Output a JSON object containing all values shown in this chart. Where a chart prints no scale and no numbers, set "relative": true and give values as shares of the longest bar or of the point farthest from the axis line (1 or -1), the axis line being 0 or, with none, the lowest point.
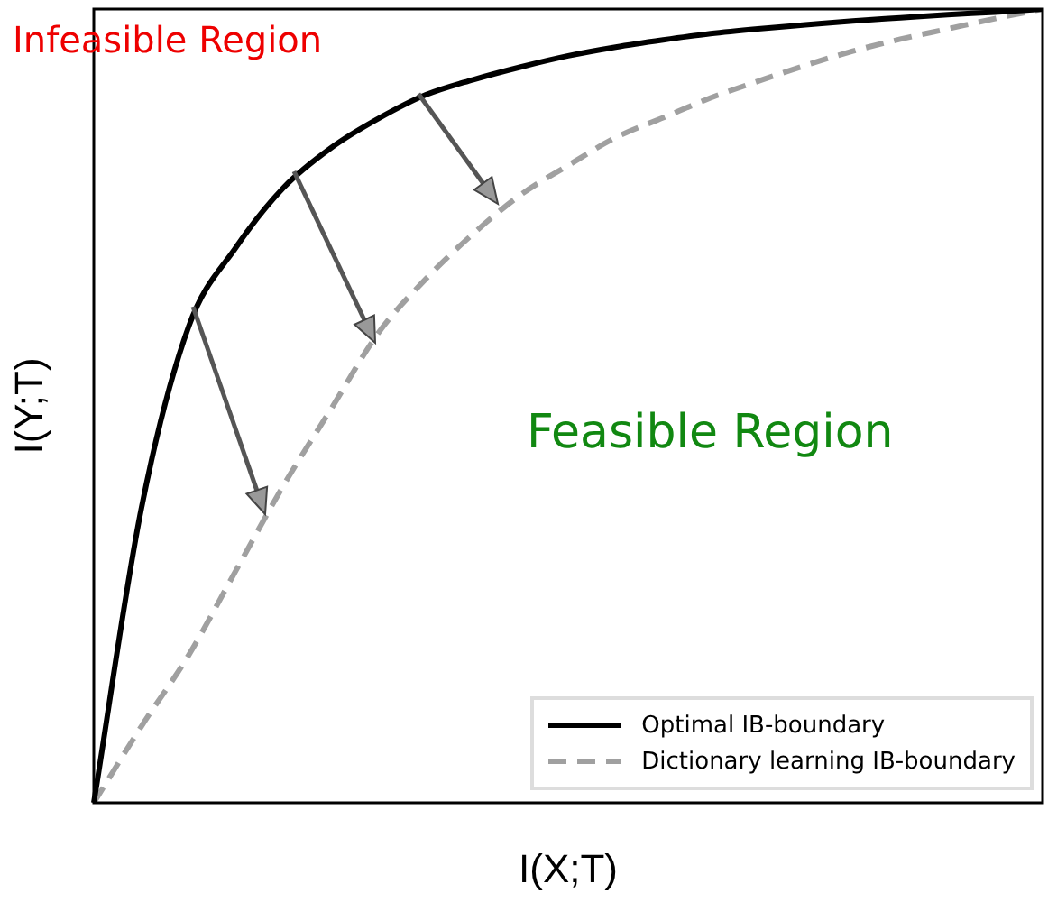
{
  "chart_data": {
    "type": "line",
    "relative": true,
    "xlabel": "I(X;T)",
    "ylabel": "I(Y;T)",
    "legend": "bottom right",
    "grid": false,
    "marker": "none",
    "annotations": [
      "Infeasible Region",
      "Feasible Region"
    ],
    "categories": [
      null,
      null,
      null,
      null,
      null,
      null,
      null,
      null,
      null,
      null,
      null,
      null,
      null,
      null,
      null,
      null,
      null,
      null,
      null,
      null,
      null
    ],
    "series": [
      {
        "name": "Optimal IB-boundary",
        "color": "#000000",
        "line_style": "solid",
        "values": [
          0,
          0.37,
          0.6,
          0.7,
          0.775,
          0.825,
          0.862,
          0.892,
          0.911,
          0.927,
          0.941,
          0.952,
          0.961,
          0.969,
          0.975,
          0.98,
          0.985,
          0.989,
          0.993,
          0.996,
          1
        ]
      },
      {
        "name": "Dictionary learning IB-boundary",
        "color": "#a0a0a0",
        "line_style": "dashed",
        "values": [
          0,
          0.096,
          0.186,
          0.293,
          0.4,
          0.496,
          0.592,
          0.66,
          0.717,
          0.766,
          0.803,
          0.838,
          0.863,
          0.888,
          0.909,
          0.929,
          0.947,
          0.962,
          0.975,
          0.988,
          1
        ]
      }
    ]
  }
}
